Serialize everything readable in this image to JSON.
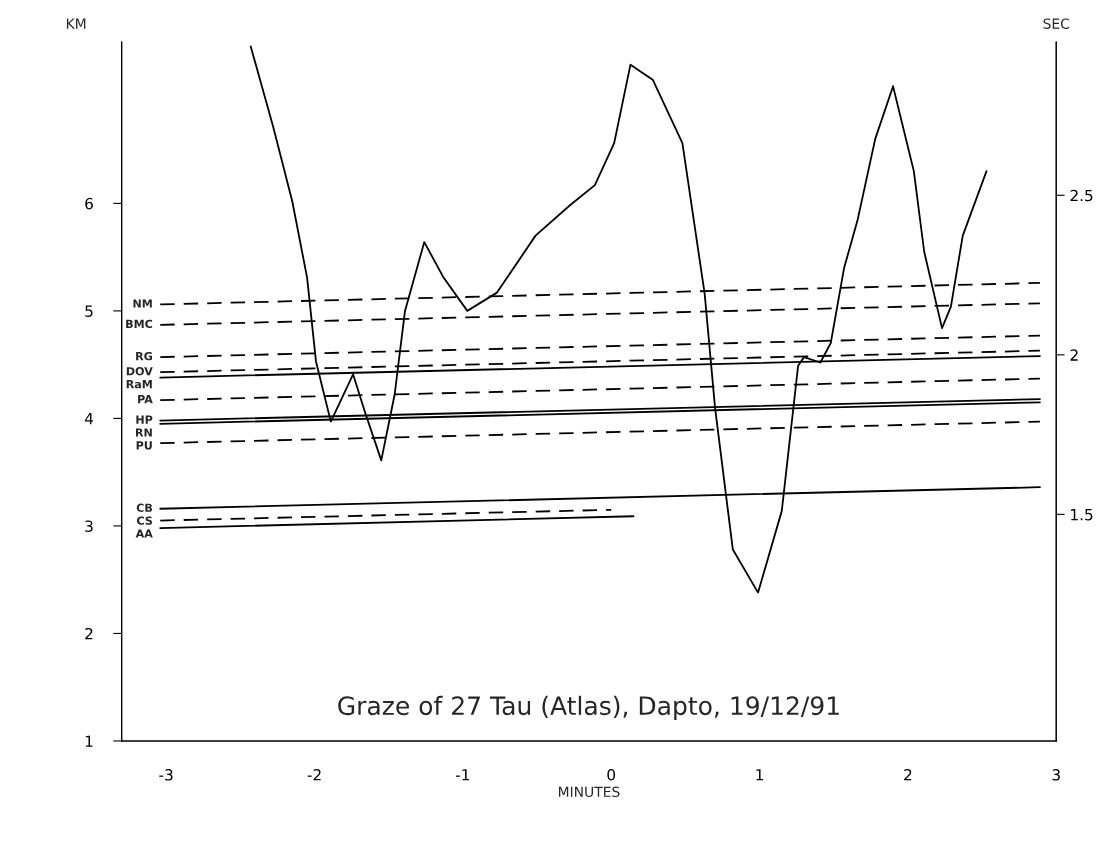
{
  "chart_data": {
    "type": "line",
    "title": "Graze of 27 Tau (Atlas), Dapto, 19/12/91",
    "xlabel": "MINUTES",
    "ylabel": "KM",
    "y2label": "SEC",
    "xlim": [
      -3.3,
      3.0
    ],
    "xticks": [
      -3,
      -2,
      -1,
      0,
      1,
      2,
      3
    ],
    "ylim": [
      1.0,
      7.5
    ],
    "yticks": [
      1,
      2,
      3,
      4,
      5,
      6
    ],
    "y2lim": [
      0.79,
      2.98
    ],
    "y2ticks": [
      1.5,
      2,
      2.5
    ],
    "grid": false,
    "legend": false,
    "marker": "none",
    "series": [
      {
        "type": "line",
        "color": "#000000",
        "line_style": "solid",
        "x": [
          -2.43,
          -2.28,
          -2.15,
          -2.05,
          -1.99,
          -1.89,
          -1.74,
          -1.66,
          -1.55,
          -1.46,
          -1.39,
          -1.26,
          -1.13,
          -0.97,
          -0.77,
          -0.51,
          -0.28,
          -0.11,
          0.02,
          0.13,
          0.28,
          0.48,
          0.63,
          0.7,
          0.82,
          0.99,
          1.15,
          1.26,
          1.3,
          1.41,
          1.48,
          1.57,
          1.66,
          1.78,
          1.9,
          2.04,
          2.11,
          2.23,
          2.29,
          2.37,
          2.53
        ],
        "values": [
          7.46,
          6.72,
          6.02,
          5.31,
          4.53,
          3.97,
          4.41,
          4.06,
          3.61,
          4.22,
          5.0,
          5.64,
          5.31,
          5.0,
          5.17,
          5.7,
          5.98,
          6.17,
          6.56,
          7.29,
          7.15,
          6.56,
          5.16,
          4.1,
          2.78,
          2.38,
          3.14,
          4.49,
          4.57,
          4.52,
          4.7,
          5.4,
          5.84,
          6.6,
          7.09,
          6.3,
          5.55,
          4.84,
          5.04,
          5.7,
          6.3
        ]
      },
      {
        "name": "NM",
        "color": "#000000",
        "line_style": "dashed",
        "x": [
          -3.04,
          2.89
        ],
        "values": [
          5.06,
          5.26
        ]
      },
      {
        "name": "BMC",
        "color": "#000000",
        "line_style": "dashed",
        "x": [
          -3.04,
          2.89
        ],
        "values": [
          4.87,
          5.07
        ]
      },
      {
        "name": "RG",
        "color": "#000000",
        "line_style": "dashed",
        "x": [
          -3.04,
          2.89
        ],
        "values": [
          4.57,
          4.77
        ]
      },
      {
        "name": "DOV",
        "color": "#000000",
        "line_style": "dashed",
        "x": [
          -3.04,
          2.89
        ],
        "values": [
          4.43,
          4.63
        ]
      },
      {
        "name": "RaM",
        "color": "#000000",
        "line_style": "solid",
        "x": [
          -3.04,
          2.89
        ],
        "values": [
          4.38,
          4.58
        ]
      },
      {
        "name": "PA",
        "color": "#000000",
        "line_style": "dashed",
        "x": [
          -3.04,
          2.89
        ],
        "values": [
          4.17,
          4.37
        ]
      },
      {
        "name": "HP",
        "color": "#000000",
        "line_style": "solid",
        "x": [
          -3.04,
          2.89
        ],
        "values": [
          3.98,
          4.18
        ]
      },
      {
        "name": "RN",
        "color": "#000000",
        "line_style": "solid",
        "x": [
          -3.04,
          2.89
        ],
        "values": [
          3.95,
          4.15
        ]
      },
      {
        "name": "PU",
        "color": "#000000",
        "line_style": "dashed",
        "x": [
          -3.04,
          2.89
        ],
        "values": [
          3.77,
          3.97
        ]
      },
      {
        "name": "CB",
        "color": "#000000",
        "line_style": "solid",
        "x": [
          -3.04,
          2.89
        ],
        "values": [
          3.16,
          3.36
        ]
      },
      {
        "name": "CS",
        "color": "#000000",
        "line_style": "dashed",
        "x": [
          -3.04,
          0.0
        ],
        "values": [
          3.05,
          3.15
        ]
      },
      {
        "name": "AA",
        "color": "#000000",
        "line_style": "solid",
        "x": [
          -3.04,
          0.15
        ],
        "values": [
          2.98,
          3.09
        ]
      }
    ]
  }
}
